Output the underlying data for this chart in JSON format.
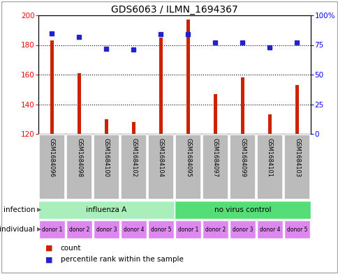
{
  "title": "GDS6063 / ILMN_1694367",
  "samples": [
    "GSM1684096",
    "GSM1684098",
    "GSM1684100",
    "GSM1684102",
    "GSM1684104",
    "GSM1684095",
    "GSM1684097",
    "GSM1684099",
    "GSM1684101",
    "GSM1684103"
  ],
  "bar_values": [
    183,
    161,
    130,
    128,
    185,
    197,
    147,
    158,
    133,
    153
  ],
  "dot_values": [
    85,
    82,
    72,
    71,
    84,
    84,
    77,
    77,
    73,
    77
  ],
  "ylim_left": [
    120,
    200
  ],
  "ylim_right": [
    0,
    100
  ],
  "yticks_left": [
    120,
    140,
    160,
    180,
    200
  ],
  "yticks_right": [
    0,
    25,
    50,
    75,
    100
  ],
  "ytick_labels_right": [
    "0",
    "25",
    "50",
    "75",
    "100%"
  ],
  "infection_groups": [
    {
      "label": "influenza A",
      "start": 0,
      "end": 5,
      "color": "#AAEEBB"
    },
    {
      "label": "no virus control",
      "start": 5,
      "end": 10,
      "color": "#55DD77"
    }
  ],
  "individual_labels": [
    "donor 1",
    "donor 2",
    "donor 3",
    "donor 4",
    "donor 5",
    "donor 1",
    "donor 2",
    "donor 3",
    "donor 4",
    "donor 5"
  ],
  "individual_colors": [
    "#DD88DD",
    "#EE99EE",
    "#DD88DD",
    "#EE99EE",
    "#EE99EE",
    "#DD88DD",
    "#EE99EE",
    "#DD88DD",
    "#EE99EE",
    "#DD88DD"
  ],
  "individual_color": "#DD88EE",
  "bar_color": "#CC2200",
  "dot_color": "#2222CC",
  "sample_bg_color": "#BBBBBB",
  "infection_label": "infection",
  "individual_label": "individual",
  "legend_count": "count",
  "legend_percentile": "percentile rank within the sample",
  "bar_width": 0.12,
  "dot_size": 5,
  "title_fontsize": 10,
  "tick_fontsize": 7.5,
  "sample_fontsize": 6,
  "row_fontsize": 7.5,
  "legend_fontsize": 7.5
}
